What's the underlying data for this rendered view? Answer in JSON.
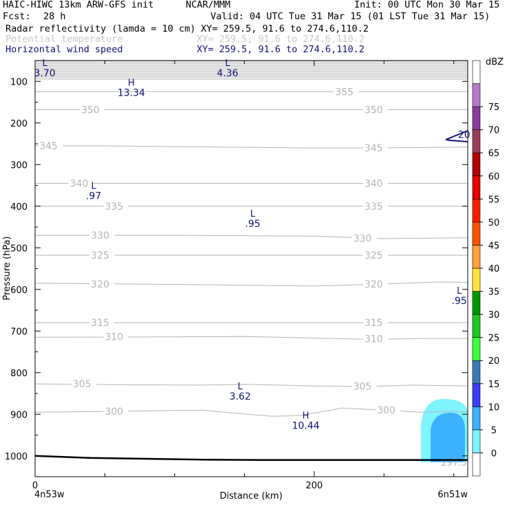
{
  "header": {
    "model": "HAIC-HIWC 13km ARW-GFS init",
    "org": "NCAR/MMM",
    "init": "Init: 00 UTC Mon 30 Mar 15",
    "fcst_label": "Fcst:",
    "fcst_value": "28 h",
    "valid": "Valid: 04 UTC Tue 31 Mar 15 (01 LST Tue 31 Mar 15)",
    "fields": [
      {
        "name": "Radar reflectivity (lamda = 10 cm)",
        "xy": "XY= 259.5, 91.6 to 274.6,110.2"
      },
      {
        "name": "Potential temperature",
        "xy": "XY= 259.5, 91.6 to 274.6,110.2"
      },
      {
        "name": "Horizontal wind speed",
        "xy": "XY= 259.5, 91.6 to 274.6,110.2"
      }
    ]
  },
  "colors": {
    "theta": "#b4b4b4",
    "wind": "#10107a",
    "terrain": "#000000",
    "refl_light": "#7ff4ff",
    "refl_dark": "#3cb2ff"
  },
  "chart_data": {
    "type": "cross-section",
    "xlabel": "Distance (km)",
    "ylabel": "Pressure (hPa)",
    "xlim": [
      0,
      310
    ],
    "ylim": [
      1050,
      50
    ],
    "x_ticks": [
      0,
      200
    ],
    "y_ticks": [
      100,
      200,
      300,
      400,
      500,
      600,
      700,
      800,
      900,
      1000
    ],
    "x_end_labels": {
      "left": "4n53w",
      "right": "6n51w"
    },
    "colorbar": {
      "unit": "dBZ",
      "levels": [
        0,
        5,
        10,
        15,
        20,
        25,
        30,
        35,
        40,
        45,
        50,
        55,
        60,
        65,
        70,
        75
      ],
      "colors": [
        "#ffffff",
        "#7ff4ff",
        "#3cb2ff",
        "#3c3cff",
        "#3c7ab4",
        "#3cff3c",
        "#1fc81f",
        "#009600",
        "#ffe23c",
        "#ffa03c",
        "#ff5000",
        "#ff1f00",
        "#e60000",
        "#b40000",
        "#9a3c5a",
        "#8a3c9a",
        "#b47ac8",
        "#ffffff"
      ]
    },
    "theta_contours": [
      {
        "label": "300",
        "points": [
          [
            0,
            895
          ],
          [
            60,
            893
          ],
          [
            120,
            890
          ],
          [
            145,
            898
          ],
          [
            170,
            905
          ],
          [
            190,
            903
          ],
          [
            220,
            885
          ],
          [
            250,
            890
          ],
          [
            275,
            895
          ],
          [
            300,
            893
          ],
          [
            310,
            895
          ]
        ],
        "label_positions": [
          [
            50,
            893
          ],
          [
            245,
            890
          ]
        ]
      },
      {
        "label": "305",
        "points": [
          [
            0,
            827
          ],
          [
            60,
            829
          ],
          [
            120,
            830
          ],
          [
            150,
            828
          ],
          [
            200,
            832
          ],
          [
            240,
            833
          ],
          [
            270,
            830
          ],
          [
            310,
            832
          ]
        ],
        "label_positions": [
          [
            27,
            827
          ],
          [
            228,
            833
          ]
        ]
      },
      {
        "label": "310",
        "points": [
          [
            0,
            715
          ],
          [
            100,
            714
          ],
          [
            150,
            713
          ],
          [
            200,
            717
          ],
          [
            240,
            720
          ],
          [
            280,
            718
          ],
          [
            310,
            718
          ]
        ],
        "label_positions": [
          [
            50,
            714
          ],
          [
            236,
            719
          ]
        ]
      },
      {
        "label": "315",
        "points": [
          [
            0,
            680
          ],
          [
            100,
            680
          ],
          [
            200,
            680
          ],
          [
            310,
            680
          ]
        ],
        "label_positions": [
          [
            40,
            680
          ],
          [
            236,
            680
          ]
        ]
      },
      {
        "label": "320",
        "points": [
          [
            0,
            585
          ],
          [
            100,
            588
          ],
          [
            200,
            592
          ],
          [
            250,
            587
          ],
          [
            290,
            582
          ],
          [
            310,
            583
          ]
        ],
        "label_positions": [
          [
            40,
            587
          ],
          [
            236,
            587
          ]
        ]
      },
      {
        "label": "325",
        "points": [
          [
            0,
            518
          ],
          [
            100,
            518
          ],
          [
            200,
            518
          ],
          [
            310,
            518
          ]
        ],
        "label_positions": [
          [
            40,
            518
          ],
          [
            236,
            518
          ]
        ]
      },
      {
        "label": "330",
        "points": [
          [
            0,
            470
          ],
          [
            100,
            470
          ],
          [
            200,
            472
          ],
          [
            250,
            478
          ],
          [
            310,
            476
          ]
        ],
        "label_positions": [
          [
            40,
            470
          ],
          [
            228,
            477
          ]
        ]
      },
      {
        "label": "335",
        "points": [
          [
            0,
            400
          ],
          [
            100,
            400
          ],
          [
            200,
            400
          ],
          [
            310,
            400
          ]
        ],
        "label_positions": [
          [
            50,
            400
          ],
          [
            236,
            400
          ]
        ]
      },
      {
        "label": "340",
        "points": [
          [
            0,
            345
          ],
          [
            100,
            345
          ],
          [
            200,
            345
          ],
          [
            310,
            345
          ]
        ],
        "label_positions": [
          [
            25,
            345
          ],
          [
            236,
            345
          ]
        ]
      },
      {
        "label": "345",
        "points": [
          [
            0,
            255
          ],
          [
            50,
            255
          ],
          [
            130,
            258
          ],
          [
            200,
            260
          ],
          [
            240,
            260
          ],
          [
            310,
            258
          ]
        ],
        "label_positions": [
          [
            3,
            255
          ],
          [
            236,
            260
          ]
        ]
      },
      {
        "label": "350",
        "points": [
          [
            0,
            168
          ],
          [
            100,
            168
          ],
          [
            200,
            168
          ],
          [
            310,
            168
          ]
        ],
        "label_positions": [
          [
            33,
            168
          ],
          [
            236,
            168
          ]
        ]
      },
      {
        "label": "355",
        "points": [
          [
            0,
            125
          ],
          [
            100,
            125
          ],
          [
            200,
            125
          ],
          [
            310,
            125
          ]
        ],
        "label_positions": [
          [
            215,
            125
          ]
        ]
      }
    ],
    "wind_labels": [
      {
        "symbol": "L",
        "value": "3.70",
        "x": 3,
        "p": 63
      },
      {
        "symbol": "L",
        "value": "4.36",
        "x": 134,
        "p": 63
      },
      {
        "symbol": "H",
        "value": "13.34",
        "x": 65,
        "p": 110
      },
      {
        "symbol": "L",
        "value": ".97",
        "x": 38,
        "p": 358
      },
      {
        "symbol": "L",
        "value": ".95",
        "x": 152,
        "p": 425
      },
      {
        "symbol": "L",
        "value": ".95",
        "x": 300,
        "p": 610
      },
      {
        "symbol": "L",
        "value": "3.62",
        "x": 143,
        "p": 840
      },
      {
        "symbol": "H",
        "value": "10.44",
        "x": 190,
        "p": 910
      }
    ],
    "wind_contour_label": {
      "value": "20",
      "x": 303,
      "p": 228
    },
    "refl_label": {
      "value": "297.5",
      "x": 291,
      "p": 1015
    },
    "terrain": [
      [
        0,
        1000
      ],
      [
        40,
        1005
      ],
      [
        80,
        1007
      ],
      [
        120,
        1009
      ],
      [
        160,
        1010
      ],
      [
        200,
        1010
      ],
      [
        260,
        1010
      ],
      [
        310,
        1010
      ]
    ]
  }
}
